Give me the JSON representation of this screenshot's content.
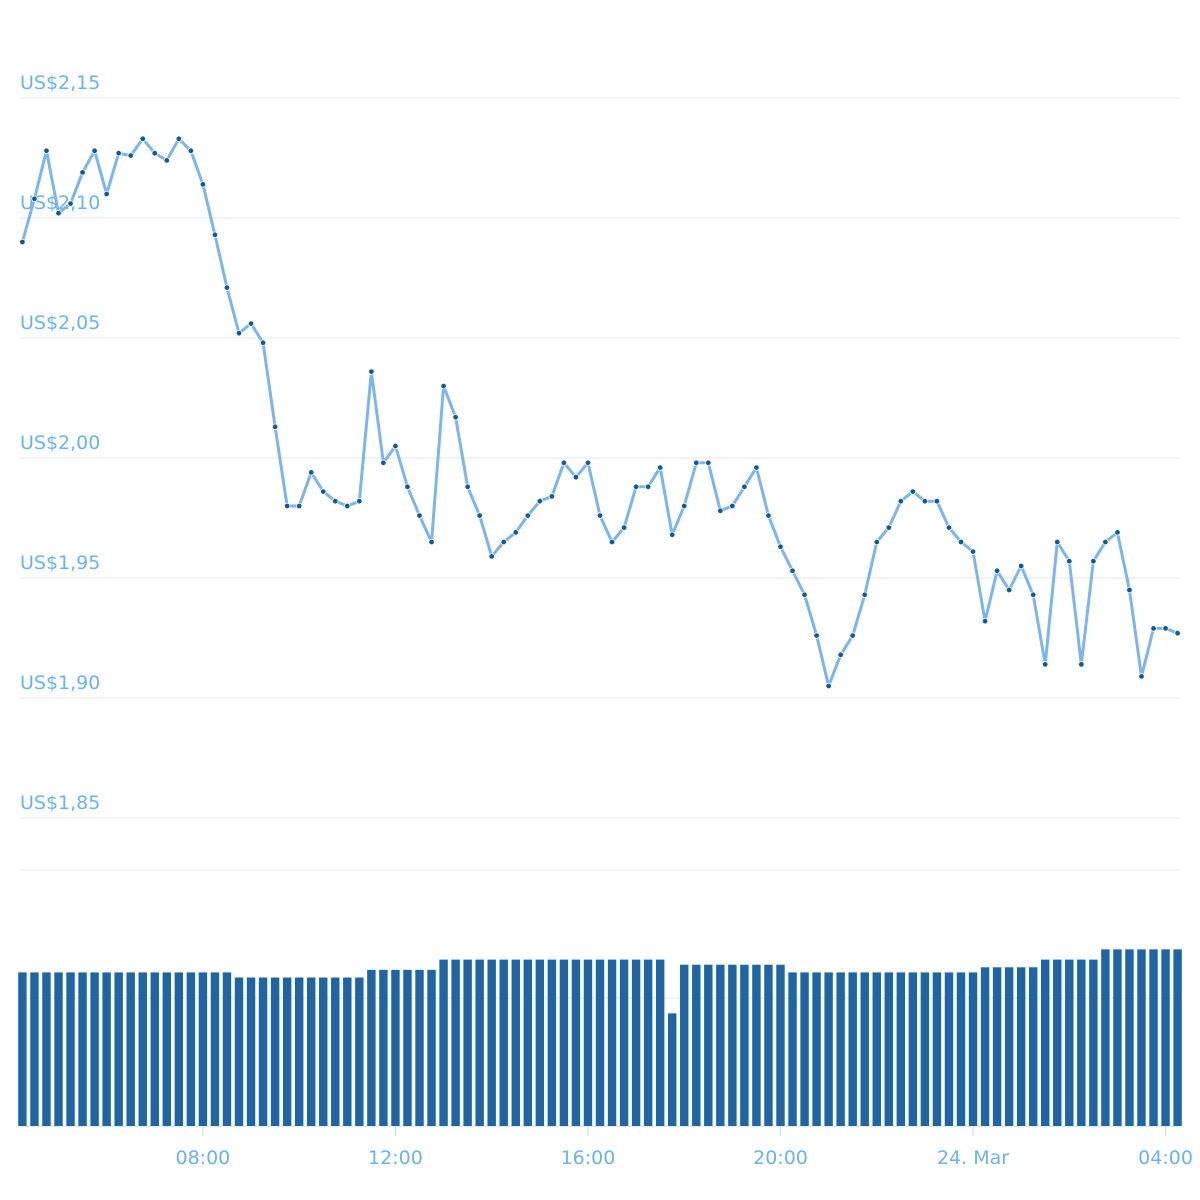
{
  "chart_data": {
    "type": "line",
    "x": [
      4.25,
      4.5,
      4.75,
      5,
      5.25,
      5.5,
      5.75,
      6,
      6.25,
      6.5,
      6.75,
      7,
      7.25,
      7.5,
      7.75,
      8,
      8.25,
      8.5,
      8.75,
      9,
      9.25,
      9.5,
      9.75,
      10,
      10.25,
      10.5,
      10.75,
      11,
      11.25,
      11.5,
      11.75,
      12,
      12.25,
      12.5,
      12.75,
      13,
      13.25,
      13.5,
      13.75,
      14,
      14.25,
      14.5,
      14.75,
      15,
      15.25,
      15.5,
      15.75,
      16,
      16.25,
      16.5,
      16.75,
      17,
      17.25,
      17.5,
      17.75,
      18,
      18.25,
      18.5,
      18.75,
      19,
      19.25,
      19.5,
      19.75,
      20,
      20.25,
      20.5,
      20.75,
      21,
      21.25,
      21.5,
      21.75,
      22,
      22.25,
      22.5,
      22.75,
      23,
      23.25,
      23.5,
      23.75,
      24,
      24.25,
      24.5,
      24.75,
      25,
      25.25,
      25.5,
      25.75,
      26,
      26.25,
      26.5,
      26.75,
      27,
      27.25,
      27.5,
      27.75,
      28,
      28.25
    ],
    "series": [
      {
        "color": "#7cb5ec",
        "marker_color": "#0d5c99",
        "values": [
          2.09,
          2.108,
          2.128,
          2.102,
          2.106,
          2.119,
          2.128,
          2.11,
          2.127,
          2.126,
          2.133,
          2.127,
          2.124,
          2.133,
          2.128,
          2.114,
          2.093,
          2.071,
          2.052,
          2.056,
          2.048,
          2.013,
          1.98,
          1.98,
          1.994,
          1.986,
          1.982,
          1.98,
          1.982,
          2.036,
          1.998,
          2.005,
          1.988,
          1.976,
          1.965,
          2.03,
          2.017,
          1.988,
          1.976,
          1.959,
          1.965,
          1.969,
          1.976,
          1.982,
          1.984,
          1.998,
          1.992,
          1.998,
          1.976,
          1.965,
          1.971,
          1.988,
          1.988,
          1.996,
          1.968,
          1.98,
          1.998,
          1.998,
          1.978,
          1.98,
          1.988,
          1.996,
          1.976,
          1.963,
          1.953,
          1.943,
          1.926,
          1.905,
          1.918,
          1.926,
          1.943,
          1.965,
          1.971,
          1.982,
          1.986,
          1.982,
          1.982,
          1.971,
          1.965,
          1.961,
          1.932,
          1.953,
          1.945,
          1.955,
          1.943,
          1.914,
          1.965,
          1.957,
          1.914,
          1.957,
          1.965,
          1.969,
          1.945,
          1.909,
          1.929,
          1.929,
          1.927
        ]
      },
      {
        "type": "bar",
        "axis": "y2",
        "color": "#1f65a3",
        "values": [
          60,
          60,
          60,
          60,
          60,
          60,
          60,
          60,
          60,
          60,
          60,
          60,
          60,
          60,
          60,
          60,
          60,
          60,
          58,
          58,
          58,
          58,
          58,
          58,
          58,
          58,
          58,
          58,
          58,
          61,
          61,
          61,
          61,
          61,
          61,
          65,
          65,
          65,
          65,
          65,
          65,
          65,
          65,
          65,
          65,
          65,
          65,
          65,
          65,
          65,
          65,
          65,
          65,
          65,
          44,
          63,
          63,
          63,
          63,
          63,
          63,
          63,
          63,
          63,
          60,
          60,
          60,
          60,
          60,
          60,
          60,
          60,
          60,
          60,
          60,
          60,
          60,
          60,
          60,
          60,
          62,
          62,
          62,
          62,
          62,
          65,
          65,
          65,
          65,
          65,
          69,
          69,
          69,
          69,
          69,
          69,
          69
        ]
      }
    ],
    "xlim": [
      4.2,
      28.3
    ],
    "xticks": [
      {
        "value": 8,
        "label": "08:00"
      },
      {
        "value": 12,
        "label": "12:00"
      },
      {
        "value": 16,
        "label": "16:00"
      },
      {
        "value": 20,
        "label": "20:00"
      },
      {
        "value": 24,
        "label": "24. Mar"
      },
      {
        "value": 28,
        "label": "04:00"
      }
    ],
    "ylim": [
      1.83,
      2.17
    ],
    "yticks": [
      {
        "value": 1.85,
        "label": "US$1,85"
      },
      {
        "value": 1.9,
        "label": "US$1,90"
      },
      {
        "value": 1.95,
        "label": "US$1,95"
      },
      {
        "value": 2.0,
        "label": "US$2,00"
      },
      {
        "value": 2.05,
        "label": "US$2,05"
      },
      {
        "value": 2.1,
        "label": "US$2,10"
      },
      {
        "value": 2.15,
        "label": "US$2,15"
      }
    ],
    "y2lim": [
      0,
      100
    ],
    "grid": true
  }
}
